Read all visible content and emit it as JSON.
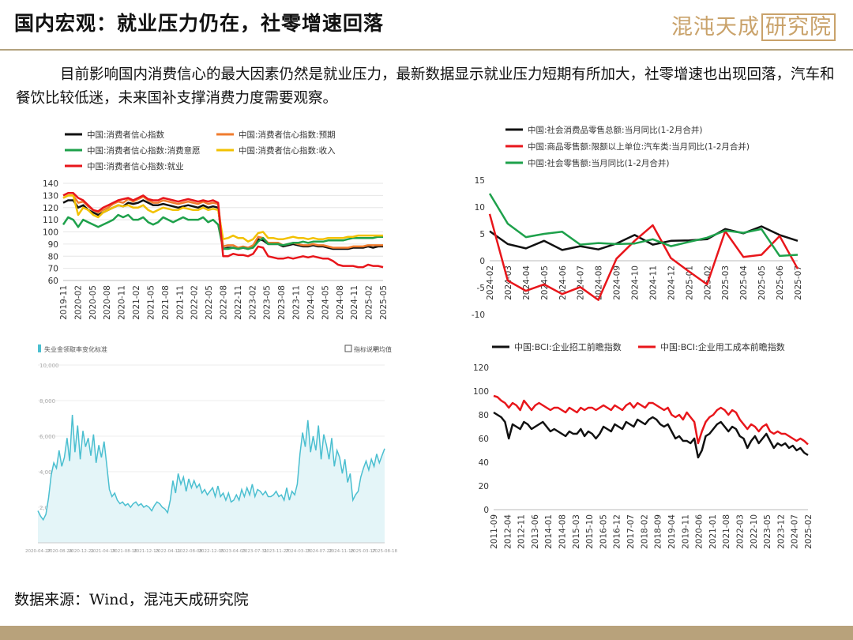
{
  "header": {
    "title": "国内宏观：就业压力仍在，社零增速回落",
    "logo_text": "混沌天成",
    "logo_box_text": "研究院"
  },
  "intro": "目前影响国内消费信心的最大因素仍然是就业压力，最新数据显示就业压力短期有所加大，社零增速也出现回落，汽车和餐饮比较低迷，未来国补支撑消费力度需要观察。",
  "source": "数据来源：Wind，混沌天成研究院",
  "colors": {
    "accent": "#b8a27b",
    "black": "#111111",
    "red": "#e8161b",
    "green": "#1ea14b",
    "orange": "#f07c2e",
    "yellow": "#f2c100",
    "teal": "#4bbfd0"
  },
  "chart_data": [
    {
      "id": "consumer-confidence",
      "type": "line",
      "ylim": [
        60,
        140
      ],
      "yticks": [
        60,
        70,
        80,
        90,
        100,
        110,
        120,
        130,
        140
      ],
      "x_labels": [
        "2019-11",
        "2020-02",
        "2020-05",
        "2020-08",
        "2020-11",
        "2021-02",
        "2021-05",
        "2021-08",
        "2021-11",
        "2022-02",
        "2022-05",
        "2022-08",
        "2022-11",
        "2023-02",
        "2023-05",
        "2023-08",
        "2023-11",
        "2024-02",
        "2024-05",
        "2024-08",
        "2024-11",
        "2025-02",
        "2025-05"
      ],
      "series": [
        {
          "name": "中国:消费者信心指数",
          "color": "#111111",
          "values": [
            124,
            126,
            126,
            120,
            122,
            118,
            116,
            114,
            116,
            118,
            120,
            122,
            121,
            124,
            123,
            124,
            126,
            124,
            122,
            122,
            123,
            122,
            121,
            120,
            121,
            122,
            121,
            120,
            122,
            120,
            121,
            120,
            86,
            87,
            87,
            86,
            87,
            86,
            88,
            94,
            93,
            90,
            90,
            90,
            88,
            89,
            90,
            89,
            88,
            88,
            89,
            88,
            88,
            87,
            86,
            86,
            86,
            86,
            87,
            87,
            87,
            88,
            87,
            88,
            88
          ]
        },
        {
          "name": "中国:消费者信心指数:预期",
          "color": "#f07c2e",
          "values": [
            128,
            130,
            130,
            124,
            125,
            121,
            118,
            116,
            118,
            120,
            123,
            125,
            124,
            127,
            125,
            127,
            129,
            126,
            124,
            124,
            126,
            125,
            124,
            123,
            124,
            125,
            124,
            123,
            125,
            123,
            124,
            123,
            88,
            89,
            89,
            87,
            88,
            87,
            89,
            96,
            95,
            91,
            91,
            91,
            89,
            90,
            91,
            90,
            89,
            89,
            90,
            89,
            89,
            88,
            87,
            87,
            87,
            87,
            88,
            88,
            88,
            89,
            89,
            89,
            89
          ]
        },
        {
          "name": "中国:消费者信心指数:消费意愿",
          "color": "#1ea14b",
          "values": [
            106,
            112,
            110,
            104,
            110,
            108,
            106,
            104,
            106,
            108,
            110,
            114,
            112,
            114,
            110,
            110,
            112,
            108,
            106,
            108,
            112,
            110,
            108,
            110,
            112,
            110,
            110,
            110,
            112,
            108,
            110,
            106,
            86,
            86,
            87,
            86,
            87,
            86,
            87,
            92,
            95,
            90,
            90,
            90,
            89,
            90,
            91,
            91,
            92,
            91,
            92,
            92,
            92,
            93,
            93,
            93,
            93,
            94,
            95,
            95,
            95,
            95,
            95,
            96,
            96
          ]
        },
        {
          "name": "中国:消费者信心指数:收入",
          "color": "#f2c100",
          "values": [
            128,
            130,
            130,
            114,
            120,
            118,
            114,
            112,
            116,
            118,
            120,
            122,
            121,
            122,
            120,
            120,
            122,
            118,
            116,
            118,
            120,
            119,
            118,
            118,
            120,
            119,
            118,
            118,
            120,
            118,
            119,
            118,
            94,
            95,
            97,
            95,
            95,
            92,
            94,
            99,
            100,
            95,
            95,
            94,
            94,
            95,
            96,
            95,
            95,
            94,
            95,
            94,
            94,
            95,
            95,
            95,
            95,
            96,
            96,
            97,
            97,
            97,
            97,
            97,
            97
          ]
        },
        {
          "name": "中国:消费者信心指数:就业",
          "color": "#e8161b",
          "values": [
            130,
            132,
            132,
            128,
            126,
            122,
            118,
            117,
            120,
            122,
            124,
            126,
            127,
            128,
            126,
            128,
            130,
            127,
            126,
            126,
            128,
            127,
            126,
            125,
            126,
            127,
            126,
            125,
            126,
            125,
            126,
            124,
            80,
            80,
            82,
            81,
            81,
            80,
            82,
            88,
            87,
            80,
            79,
            78,
            78,
            79,
            78,
            79,
            80,
            79,
            80,
            79,
            78,
            78,
            76,
            73,
            72,
            72,
            72,
            71,
            71,
            73,
            72,
            72,
            71
          ]
        }
      ]
    },
    {
      "id": "retail-sales",
      "type": "line",
      "ylim": [
        -10,
        15
      ],
      "yticks": [
        -10,
        -5,
        0,
        5,
        10,
        15
      ],
      "x_labels": [
        "2024-02",
        "2024-03",
        "2024-04",
        "2024-05",
        "2024-06",
        "2024-07",
        "2024-08",
        "2024-09",
        "2024-10",
        "2024-11",
        "2024-12",
        "2025-01",
        "2025-02",
        "2025-03",
        "2025-04",
        "2025-05",
        "2025-06",
        "2025-07"
      ],
      "series": [
        {
          "name": "中国:社会消费品零售总额:当月同比(1-2月合并)",
          "color": "#111111",
          "values": [
            5.5,
            3.1,
            2.3,
            3.7,
            2.0,
            2.7,
            2.1,
            3.2,
            4.8,
            3.0,
            3.7,
            3.8,
            4.0,
            5.9,
            5.1,
            6.4,
            4.8,
            3.7
          ]
        },
        {
          "name": "中国:商品零售额:限额以上单位:汽车类:当月同比(1-2月合并)",
          "color": "#e8161b",
          "values": [
            8.7,
            -3.7,
            -5.6,
            -4.4,
            -6.2,
            -4.9,
            -7.3,
            0.4,
            3.7,
            6.6,
            0.5,
            -2.0,
            -4.4,
            5.5,
            0.7,
            1.1,
            4.6,
            -1.5
          ]
        },
        {
          "name": "中国:社会零售额:当月同比(1-2月合并)",
          "color": "#1ea14b",
          "values": [
            12.5,
            6.9,
            4.4,
            5.0,
            5.4,
            3.0,
            3.3,
            3.1,
            3.2,
            4.0,
            2.7,
            3.5,
            4.3,
            5.6,
            5.2,
            5.9,
            0.9,
            1.1
          ]
        }
      ]
    },
    {
      "id": "teal-area",
      "type": "area",
      "legend_title": "失业金领取率变化标准",
      "legend_right": [
        "指标说明",
        "平均值"
      ],
      "yticks": [
        "2,000",
        "4,000",
        "6,000",
        "8,000",
        "10,000"
      ],
      "ylim": [
        0,
        10000
      ],
      "x_labels": [
        "2020-04-27",
        "2020-08-24",
        "2020-12-21",
        "2021-04-19",
        "2021-08-16",
        "2021-12-13",
        "2022-04-11",
        "2022-08-08",
        "2022-12-05",
        "2023-04-03",
        "2023-07-31",
        "2023-11-27",
        "2024-03-25",
        "2024-07-22",
        "2024-11-18",
        "2025-03-17",
        "2025-08-18"
      ],
      "series": [
        {
          "name": "",
          "color": "#4bbfd0",
          "values": [
            1800,
            1500,
            1300,
            1600,
            2500,
            3800,
            4500,
            4200,
            5200,
            4300,
            4800,
            5900,
            4600,
            7200,
            5100,
            6600,
            4700,
            6300,
            5400,
            5900,
            4900,
            6100,
            4500,
            5500,
            4800,
            5700,
            4400,
            3000,
            2600,
            2800,
            2400,
            2200,
            2300,
            2100,
            2200,
            2000,
            2200,
            2300,
            2100,
            2200,
            2000,
            2100,
            2000,
            1800,
            2100,
            2300,
            2200,
            2000,
            1900,
            1700,
            2400,
            3500,
            2800,
            3900,
            3300,
            3700,
            2900,
            3600,
            3100,
            3500,
            3100,
            3300,
            2800,
            3000,
            2700,
            2900,
            3100,
            2600,
            3200,
            2600,
            2800,
            2400,
            2800,
            2300,
            2400,
            2700,
            2400,
            3000,
            2600,
            3100,
            2700,
            3300,
            2600,
            3000,
            2900,
            2700,
            2900,
            2600,
            2600,
            2700,
            2900,
            2600,
            2700,
            2400,
            3100,
            2400,
            2900,
            2700,
            3300,
            5000,
            6200,
            5400,
            6900,
            5100,
            6000,
            5200,
            6600,
            4700,
            6100,
            5500,
            4700,
            5900,
            4300,
            5200,
            4800,
            3900,
            4700,
            3400,
            3900,
            2400,
            2700,
            2900,
            3700,
            4200,
            4600,
            4100,
            4700,
            4300,
            5000,
            4500,
            4900,
            5300
          ]
        }
      ]
    },
    {
      "id": "bci",
      "type": "line",
      "ylim": [
        0,
        120
      ],
      "yticks": [
        0,
        20,
        40,
        60,
        80,
        100,
        120
      ],
      "x_labels": [
        "2011-09",
        "2012-04",
        "2012-11",
        "2013-06",
        "2014-01",
        "2014-08",
        "2015-03",
        "2015-10",
        "2016-05",
        "2016-12",
        "2017-07",
        "2018-02",
        "2018-09",
        "2019-04",
        "2019-11",
        "2020-06",
        "2021-01",
        "2021-08",
        "2022-03",
        "2022-10",
        "2023-05",
        "2023-12",
        "2024-07",
        "2025-02"
      ],
      "series": [
        {
          "name": "中国:BCI:企业招工前瞻指数",
          "color": "#111111",
          "values": [
            82,
            80,
            78,
            74,
            60,
            72,
            70,
            68,
            74,
            72,
            68,
            70,
            72,
            74,
            70,
            66,
            68,
            66,
            64,
            62,
            66,
            64,
            64,
            68,
            62,
            66,
            64,
            60,
            64,
            70,
            68,
            66,
            72,
            70,
            68,
            74,
            72,
            70,
            76,
            74,
            72,
            76,
            78,
            76,
            72,
            70,
            72,
            66,
            60,
            62,
            58,
            58,
            56,
            60,
            44,
            50,
            62,
            64,
            68,
            72,
            74,
            70,
            66,
            70,
            68,
            62,
            60,
            52,
            58,
            62,
            56,
            60,
            64,
            58,
            52,
            56,
            54,
            56,
            52,
            54,
            50,
            52,
            48,
            46
          ]
        },
        {
          "name": "中国:BCI:企业用工成本前瞻指数",
          "color": "#e8161b",
          "values": [
            96,
            95,
            92,
            90,
            86,
            90,
            88,
            84,
            92,
            88,
            84,
            88,
            90,
            88,
            86,
            84,
            86,
            86,
            84,
            82,
            86,
            84,
            82,
            86,
            84,
            86,
            86,
            84,
            86,
            88,
            86,
            84,
            88,
            86,
            84,
            88,
            90,
            86,
            90,
            88,
            86,
            90,
            90,
            88,
            86,
            84,
            86,
            80,
            78,
            80,
            76,
            82,
            78,
            74,
            56,
            66,
            74,
            78,
            80,
            84,
            86,
            84,
            80,
            84,
            82,
            76,
            72,
            68,
            72,
            70,
            66,
            70,
            72,
            66,
            64,
            66,
            64,
            64,
            62,
            60,
            58,
            60,
            58,
            55
          ]
        }
      ]
    }
  ]
}
